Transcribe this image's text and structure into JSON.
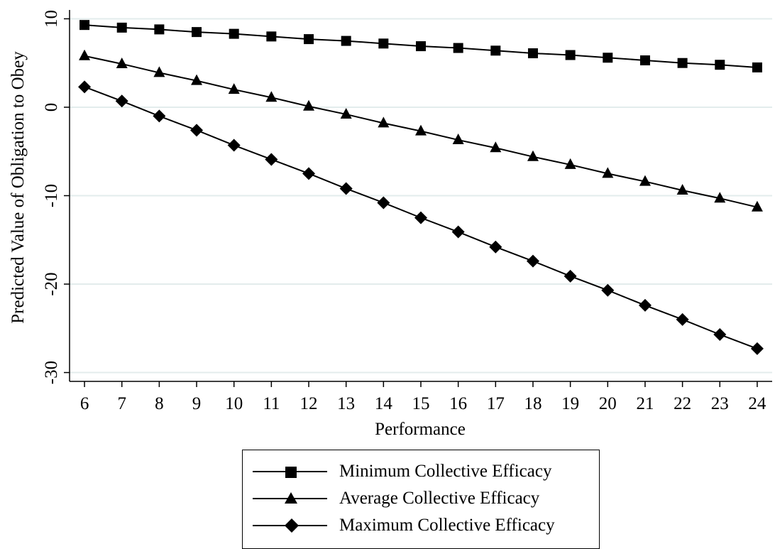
{
  "chart_data": {
    "type": "line",
    "xlabel": "Performance",
    "ylabel": "Predicted Value of Obligation to Obey",
    "x": [
      6,
      7,
      8,
      9,
      10,
      11,
      12,
      13,
      14,
      15,
      16,
      17,
      18,
      19,
      20,
      21,
      22,
      23,
      24
    ],
    "xlim": [
      5.6,
      24.4
    ],
    "ylim": [
      -31,
      11
    ],
    "yticks": [
      10,
      0,
      -10,
      -20,
      -30
    ],
    "grid": true,
    "legend_placement": "bottom-center",
    "series": [
      {
        "name": "Minimum Collective Efficacy",
        "marker": "square",
        "values": [
          9.3,
          9.0,
          8.8,
          8.5,
          8.3,
          8.0,
          7.7,
          7.5,
          7.2,
          6.9,
          6.7,
          6.4,
          6.1,
          5.9,
          5.6,
          5.3,
          5.0,
          4.8,
          4.5
        ]
      },
      {
        "name": "Average Collective Efficacy",
        "marker": "triangle",
        "values": [
          5.8,
          4.9,
          3.9,
          3.0,
          2.0,
          1.1,
          0.1,
          -0.8,
          -1.8,
          -2.7,
          -3.7,
          -4.6,
          -5.6,
          -6.5,
          -7.5,
          -8.4,
          -9.4,
          -10.3,
          -11.3
        ]
      },
      {
        "name": "Maximum Collective Efficacy",
        "marker": "diamond",
        "values": [
          2.3,
          0.7,
          -1.0,
          -2.6,
          -4.3,
          -5.9,
          -7.5,
          -9.2,
          -10.8,
          -12.5,
          -14.1,
          -15.8,
          -17.4,
          -19.1,
          -20.7,
          -22.4,
          -24.0,
          -25.7,
          -27.3
        ]
      }
    ]
  }
}
